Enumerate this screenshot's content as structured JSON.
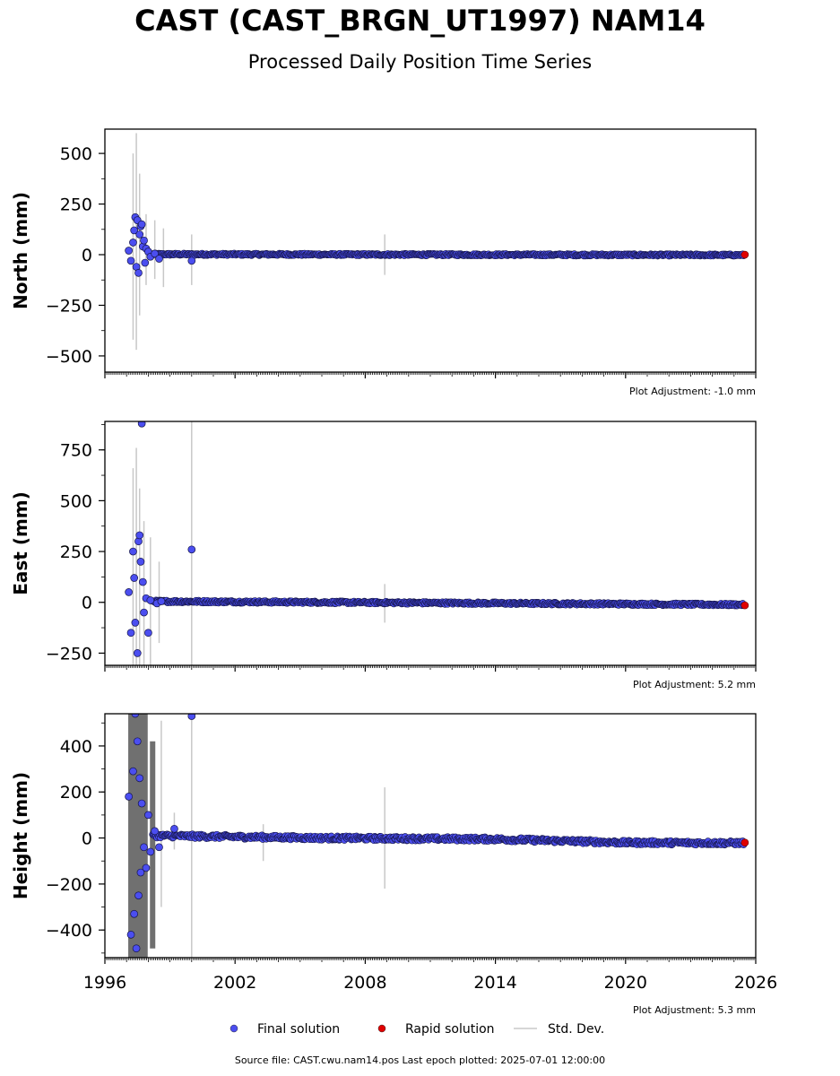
{
  "title": "CAST (CAST_BRGN_UT1997) NAM14",
  "subtitle": "Processed Daily Position Time Series",
  "source_note": "Source file: CAST.cwu.nam14.pos  Last epoch plotted: 2025-07-01 12:00:00",
  "colors": {
    "final": "#4b4ef0",
    "final_edge": "#16164a",
    "rapid": "#e00000",
    "stddev": "#c8c8c8",
    "frame": "#000000"
  },
  "chart_data": {
    "type": "scatter",
    "x_ticks": [
      "1996",
      "2002",
      "2008",
      "2014",
      "2020",
      "2026"
    ],
    "xlim": [
      1996,
      2026
    ],
    "legend": {
      "placement": "bottom-center",
      "entries": [
        {
          "label": "Final solution",
          "marker": "dot",
          "color": "#4b4ef0"
        },
        {
          "label": "Rapid solution",
          "marker": "dot",
          "color": "#e00000"
        },
        {
          "label": "Std. Dev.",
          "marker": "line",
          "color": "#c8c8c8"
        }
      ]
    },
    "panels": [
      {
        "ylabel": "North (mm)",
        "ylim": [
          -580,
          620
        ],
        "y_ticks": [
          "500",
          "250",
          "0",
          "−250",
          "−500"
        ],
        "y_tick_values": [
          500,
          250,
          0,
          -250,
          -500
        ],
        "adjustment": "Plot Adjustment: -1.0 mm",
        "early_points": [
          [
            1997.1,
            20
          ],
          [
            1997.2,
            -30
          ],
          [
            1997.3,
            60
          ],
          [
            1997.35,
            120
          ],
          [
            1997.4,
            185
          ],
          [
            1997.45,
            -60
          ],
          [
            1997.5,
            170
          ],
          [
            1997.55,
            -90
          ],
          [
            1997.6,
            100
          ],
          [
            1997.65,
            140
          ],
          [
            1997.7,
            150
          ],
          [
            1997.75,
            40
          ],
          [
            1997.8,
            70
          ],
          [
            1997.85,
            -40
          ],
          [
            1997.9,
            30
          ],
          [
            1998.0,
            15
          ],
          [
            1998.1,
            -10
          ],
          [
            1998.3,
            5
          ],
          [
            1998.5,
            -20
          ],
          [
            2000.0,
            -30
          ]
        ],
        "trend": [
          [
            1998.2,
            2
          ],
          [
            2026,
            -2
          ]
        ],
        "scatter_amp": 5,
        "rapid_points": [
          [
            2025.5,
            0
          ]
        ],
        "stddev_bars": [
          [
            1997.3,
            -420,
            500
          ],
          [
            1997.45,
            -470,
            600
          ],
          [
            1997.6,
            -300,
            400
          ],
          [
            1997.9,
            -150,
            200
          ],
          [
            1998.3,
            -120,
            170
          ],
          [
            1998.7,
            -160,
            130
          ],
          [
            2000.0,
            -150,
            100
          ],
          [
            2008.9,
            -100,
            100
          ]
        ]
      },
      {
        "ylabel": "East (mm)",
        "ylim": [
          -310,
          890
        ],
        "y_ticks": [
          "750",
          "500",
          "250",
          "0",
          "−250"
        ],
        "y_tick_values": [
          750,
          500,
          250,
          0,
          -250
        ],
        "adjustment": "Plot Adjustment: 5.2 mm",
        "early_points": [
          [
            1997.1,
            50
          ],
          [
            1997.2,
            -150
          ],
          [
            1997.3,
            250
          ],
          [
            1997.35,
            120
          ],
          [
            1997.4,
            -100
          ],
          [
            1997.5,
            -250
          ],
          [
            1997.55,
            300
          ],
          [
            1997.6,
            330
          ],
          [
            1997.65,
            200
          ],
          [
            1997.7,
            880
          ],
          [
            1997.75,
            100
          ],
          [
            1997.8,
            -50
          ],
          [
            1997.9,
            20
          ],
          [
            1998.0,
            -150
          ],
          [
            1998.1,
            10
          ],
          [
            1998.4,
            -5
          ],
          [
            1998.6,
            5
          ],
          [
            2000.0,
            260
          ]
        ],
        "trend": [
          [
            1998.2,
            5
          ],
          [
            2026,
            -12
          ]
        ],
        "scatter_amp": 6,
        "rapid_points": [
          [
            2025.5,
            -15
          ]
        ],
        "stddev_bars": [
          [
            1997.3,
            -310,
            660
          ],
          [
            1997.45,
            -310,
            760
          ],
          [
            1997.6,
            -310,
            560
          ],
          [
            1997.8,
            -310,
            400
          ],
          [
            1998.1,
            -310,
            320
          ],
          [
            1998.5,
            -200,
            200
          ],
          [
            2000.0,
            -310,
            890
          ],
          [
            2008.9,
            -100,
            90
          ]
        ]
      },
      {
        "ylabel": "Height (mm)",
        "ylim": [
          -520,
          540
        ],
        "y_ticks": [
          "400",
          "200",
          "0",
          "−200",
          "−400"
        ],
        "y_tick_values": [
          400,
          200,
          0,
          -200,
          -400
        ],
        "adjustment": "Plot Adjustment: 5.3 mm",
        "early_points": [
          [
            1997.1,
            180
          ],
          [
            1997.2,
            -420
          ],
          [
            1997.3,
            290
          ],
          [
            1997.35,
            -330
          ],
          [
            1997.4,
            540
          ],
          [
            1997.45,
            -480
          ],
          [
            1997.5,
            420
          ],
          [
            1997.55,
            -250
          ],
          [
            1997.6,
            260
          ],
          [
            1997.65,
            -150
          ],
          [
            1997.7,
            150
          ],
          [
            1997.8,
            -40
          ],
          [
            1997.9,
            -130
          ],
          [
            1998.0,
            100
          ],
          [
            1998.1,
            -60
          ],
          [
            1998.3,
            30
          ],
          [
            1998.5,
            -40
          ],
          [
            1999.2,
            40
          ],
          [
            2000.0,
            530
          ]
        ],
        "trend": [
          [
            1998.2,
            10
          ],
          [
            2006,
            0
          ],
          [
            2014,
            -5
          ],
          [
            2020,
            -20
          ],
          [
            2026,
            -22
          ]
        ],
        "scatter_amp": 9,
        "rapid_points": [
          [
            2025.5,
            -20
          ]
        ],
        "stddev_bars": [
          [
            1997.2,
            -520,
            540
          ],
          [
            1997.35,
            -520,
            540
          ],
          [
            1997.5,
            -520,
            540
          ],
          [
            1997.65,
            -520,
            540
          ],
          [
            1997.85,
            -520,
            540
          ],
          [
            1998.2,
            -480,
            420
          ],
          [
            1998.6,
            -300,
            510
          ],
          [
            1999.2,
            -50,
            110
          ],
          [
            2000.0,
            -520,
            540
          ],
          [
            2003.3,
            -100,
            60
          ],
          [
            2008.9,
            -220,
            220
          ]
        ]
      }
    ]
  }
}
